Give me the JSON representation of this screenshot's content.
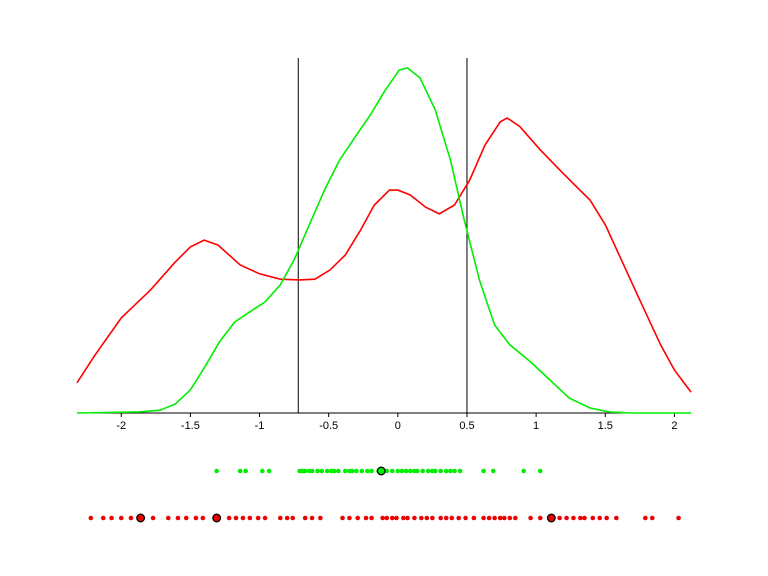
{
  "chart_data": [
    {
      "type": "line",
      "xlim": [
        -2.32,
        2.12
      ],
      "ylim": [
        0,
        1
      ],
      "xticks": [
        -2,
        -1.5,
        -1,
        -0.5,
        0,
        0.5,
        1,
        1.5,
        2
      ],
      "vlines": [
        -0.72,
        0.5
      ],
      "series": [
        {
          "color": "#ff0000",
          "x": [
            -2.32,
            -2.19,
            -2.0,
            -1.79,
            -1.61,
            -1.5,
            -1.4,
            -1.3,
            -1.14,
            -1.0,
            -0.85,
            -0.71,
            -0.6,
            -0.49,
            -0.38,
            -0.27,
            -0.17,
            -0.06,
            0,
            0.09,
            0.2,
            0.3,
            0.41,
            0.52,
            0.63,
            0.74,
            0.79,
            0.88,
            1.03,
            1.17,
            1.28,
            1.39,
            1.5,
            1.61,
            1.75,
            1.9,
            2.0,
            2.12
          ],
          "y": [
            0.085,
            0.163,
            0.268,
            0.346,
            0.425,
            0.468,
            0.487,
            0.473,
            0.417,
            0.392,
            0.377,
            0.375,
            0.377,
            0.403,
            0.445,
            0.515,
            0.586,
            0.628,
            0.628,
            0.614,
            0.58,
            0.561,
            0.586,
            0.656,
            0.755,
            0.82,
            0.831,
            0.808,
            0.741,
            0.685,
            0.642,
            0.6,
            0.53,
            0.437,
            0.318,
            0.192,
            0.121,
            0.059
          ]
        },
        {
          "color": "#00ee00",
          "x": [
            -2.32,
            -1.87,
            -1.72,
            -1.61,
            -1.5,
            -1.4,
            -1.29,
            -1.18,
            -1.07,
            -0.96,
            -0.85,
            -0.75,
            -0.64,
            -0.53,
            -0.42,
            -0.31,
            -0.2,
            -0.09,
            0.01,
            0.07,
            0.16,
            0.27,
            0.38,
            0.48,
            0.59,
            0.7,
            0.81,
            0.96,
            1.1,
            1.24,
            1.39,
            1.53,
            1.68,
            2.12
          ],
          "y": [
            0,
            0.003,
            0.008,
            0.025,
            0.065,
            0.127,
            0.2,
            0.256,
            0.285,
            0.313,
            0.361,
            0.431,
            0.53,
            0.628,
            0.713,
            0.777,
            0.839,
            0.91,
            0.966,
            0.972,
            0.944,
            0.854,
            0.713,
            0.544,
            0.375,
            0.248,
            0.192,
            0.144,
            0.093,
            0.042,
            0.014,
            0.003,
            0,
            0
          ]
        }
      ]
    },
    {
      "type": "strip",
      "xlim": [
        -2.32,
        2.12
      ],
      "series": [
        {
          "color": "#00ee00",
          "x": [
            -1.31,
            -1.14,
            -1.1,
            -0.98,
            -0.93,
            -0.71,
            -0.69,
            -0.67,
            -0.64,
            -0.62,
            -0.58,
            -0.55,
            -0.51,
            -0.48,
            -0.46,
            -0.43,
            -0.38,
            -0.35,
            -0.33,
            -0.3,
            -0.26,
            -0.22,
            -0.19,
            -0.14,
            -0.08,
            -0.04,
            0,
            0.03,
            0.06,
            0.09,
            0.12,
            0.14,
            0.18,
            0.22,
            0.25,
            0.27,
            0.31,
            0.35,
            0.38,
            0.41,
            0.45,
            0.62,
            0.69,
            0.91,
            1.03
          ],
          "highlighted_x": [
            -0.12
          ]
        },
        {
          "color": "#ee0000",
          "x": [
            -2.22,
            -2.13,
            -2.07,
            -2.0,
            -1.93,
            -1.77,
            -1.66,
            -1.59,
            -1.53,
            -1.46,
            -1.41,
            -1.22,
            -1.17,
            -1.12,
            -1.07,
            -1.01,
            -0.96,
            -0.85,
            -0.8,
            -0.76,
            -0.67,
            -0.62,
            -0.56,
            -0.4,
            -0.35,
            -0.29,
            -0.23,
            -0.19,
            -0.11,
            -0.08,
            -0.04,
            -0.01,
            0.04,
            0.07,
            0.12,
            0.17,
            0.21,
            0.25,
            0.31,
            0.35,
            0.39,
            0.44,
            0.49,
            0.55,
            0.62,
            0.66,
            0.7,
            0.74,
            0.77,
            0.81,
            0.85,
            0.96,
            1.03,
            1.17,
            1.22,
            1.27,
            1.32,
            1.35,
            1.41,
            1.46,
            1.51,
            1.58,
            1.79,
            1.84,
            2.03
          ],
          "highlighted_x": [
            -1.86,
            -1.31,
            1.11
          ]
        }
      ]
    }
  ]
}
